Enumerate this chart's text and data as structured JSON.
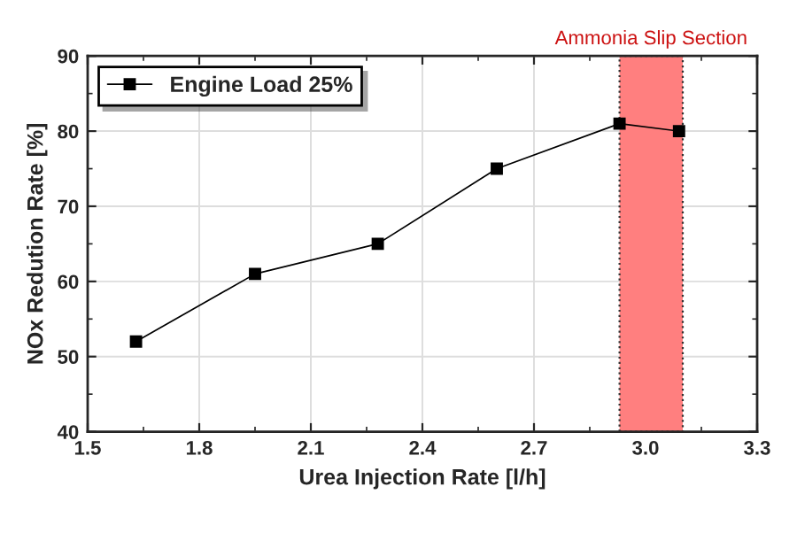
{
  "chart_data": {
    "type": "line",
    "xlabel": "Urea Injection Rate [l/h]",
    "ylabel": "NOx Redution Rate [%]",
    "x": [
      1.63,
      1.95,
      2.28,
      2.6,
      2.93,
      3.09
    ],
    "series": [
      {
        "name": "Engine Load 25%",
        "color": "#000000",
        "values": [
          52,
          61,
          65,
          75,
          81,
          80
        ]
      }
    ],
    "xlim": [
      1.5,
      3.3
    ],
    "xticks": [
      1.5,
      1.8,
      2.1,
      2.4,
      2.7,
      {
        "value": 3,
        "label": "3.0"
      },
      3.3
    ],
    "ylim": [
      40,
      90
    ],
    "yticks": [
      40,
      50,
      60,
      70,
      80,
      90
    ],
    "bands": [
      {
        "axis": "x",
        "from": 2.93,
        "to": 3.1,
        "label": "Ammonia Slip Section",
        "color": "#ff7f7f"
      }
    ],
    "grid": true,
    "legend": "top left",
    "marker": "square",
    "line_style": "solid"
  }
}
